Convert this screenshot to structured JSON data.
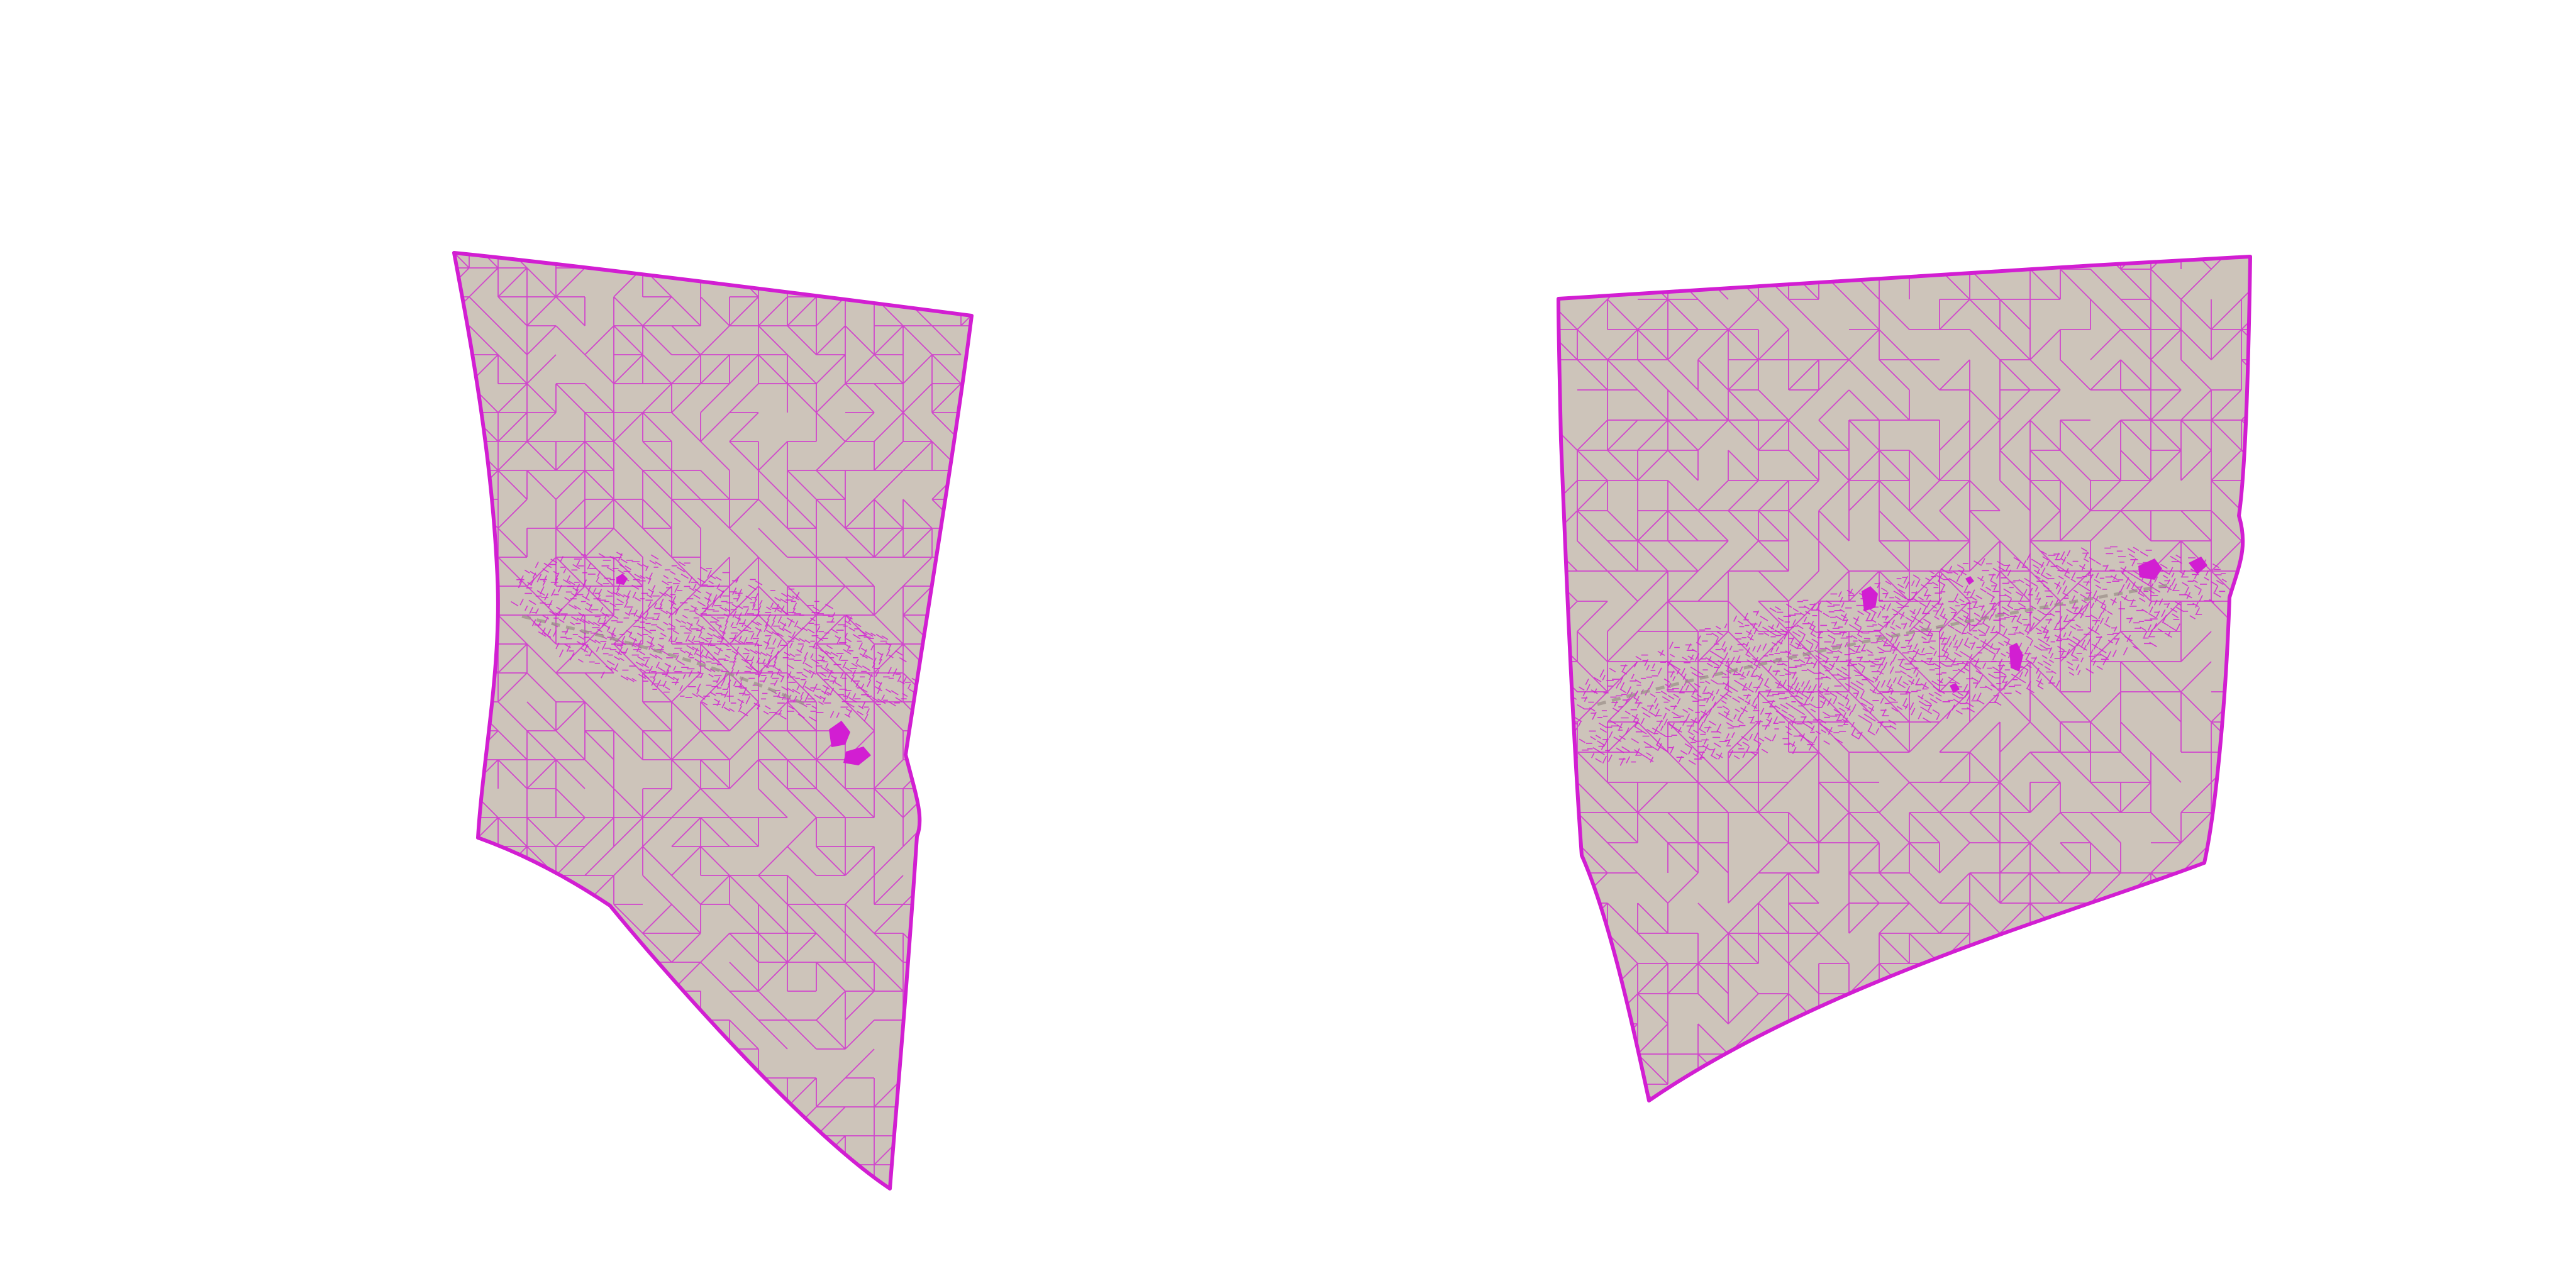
{
  "background_color": "#ffffff",
  "surface_fill": "#cdc4ba",
  "wire_color": "#d21ed2",
  "fracture_shadow": "#9a8f88",
  "panels": [
    {
      "name": "mesh-panel-left",
      "view": "left"
    },
    {
      "name": "mesh-panel-right",
      "view": "right"
    }
  ]
}
